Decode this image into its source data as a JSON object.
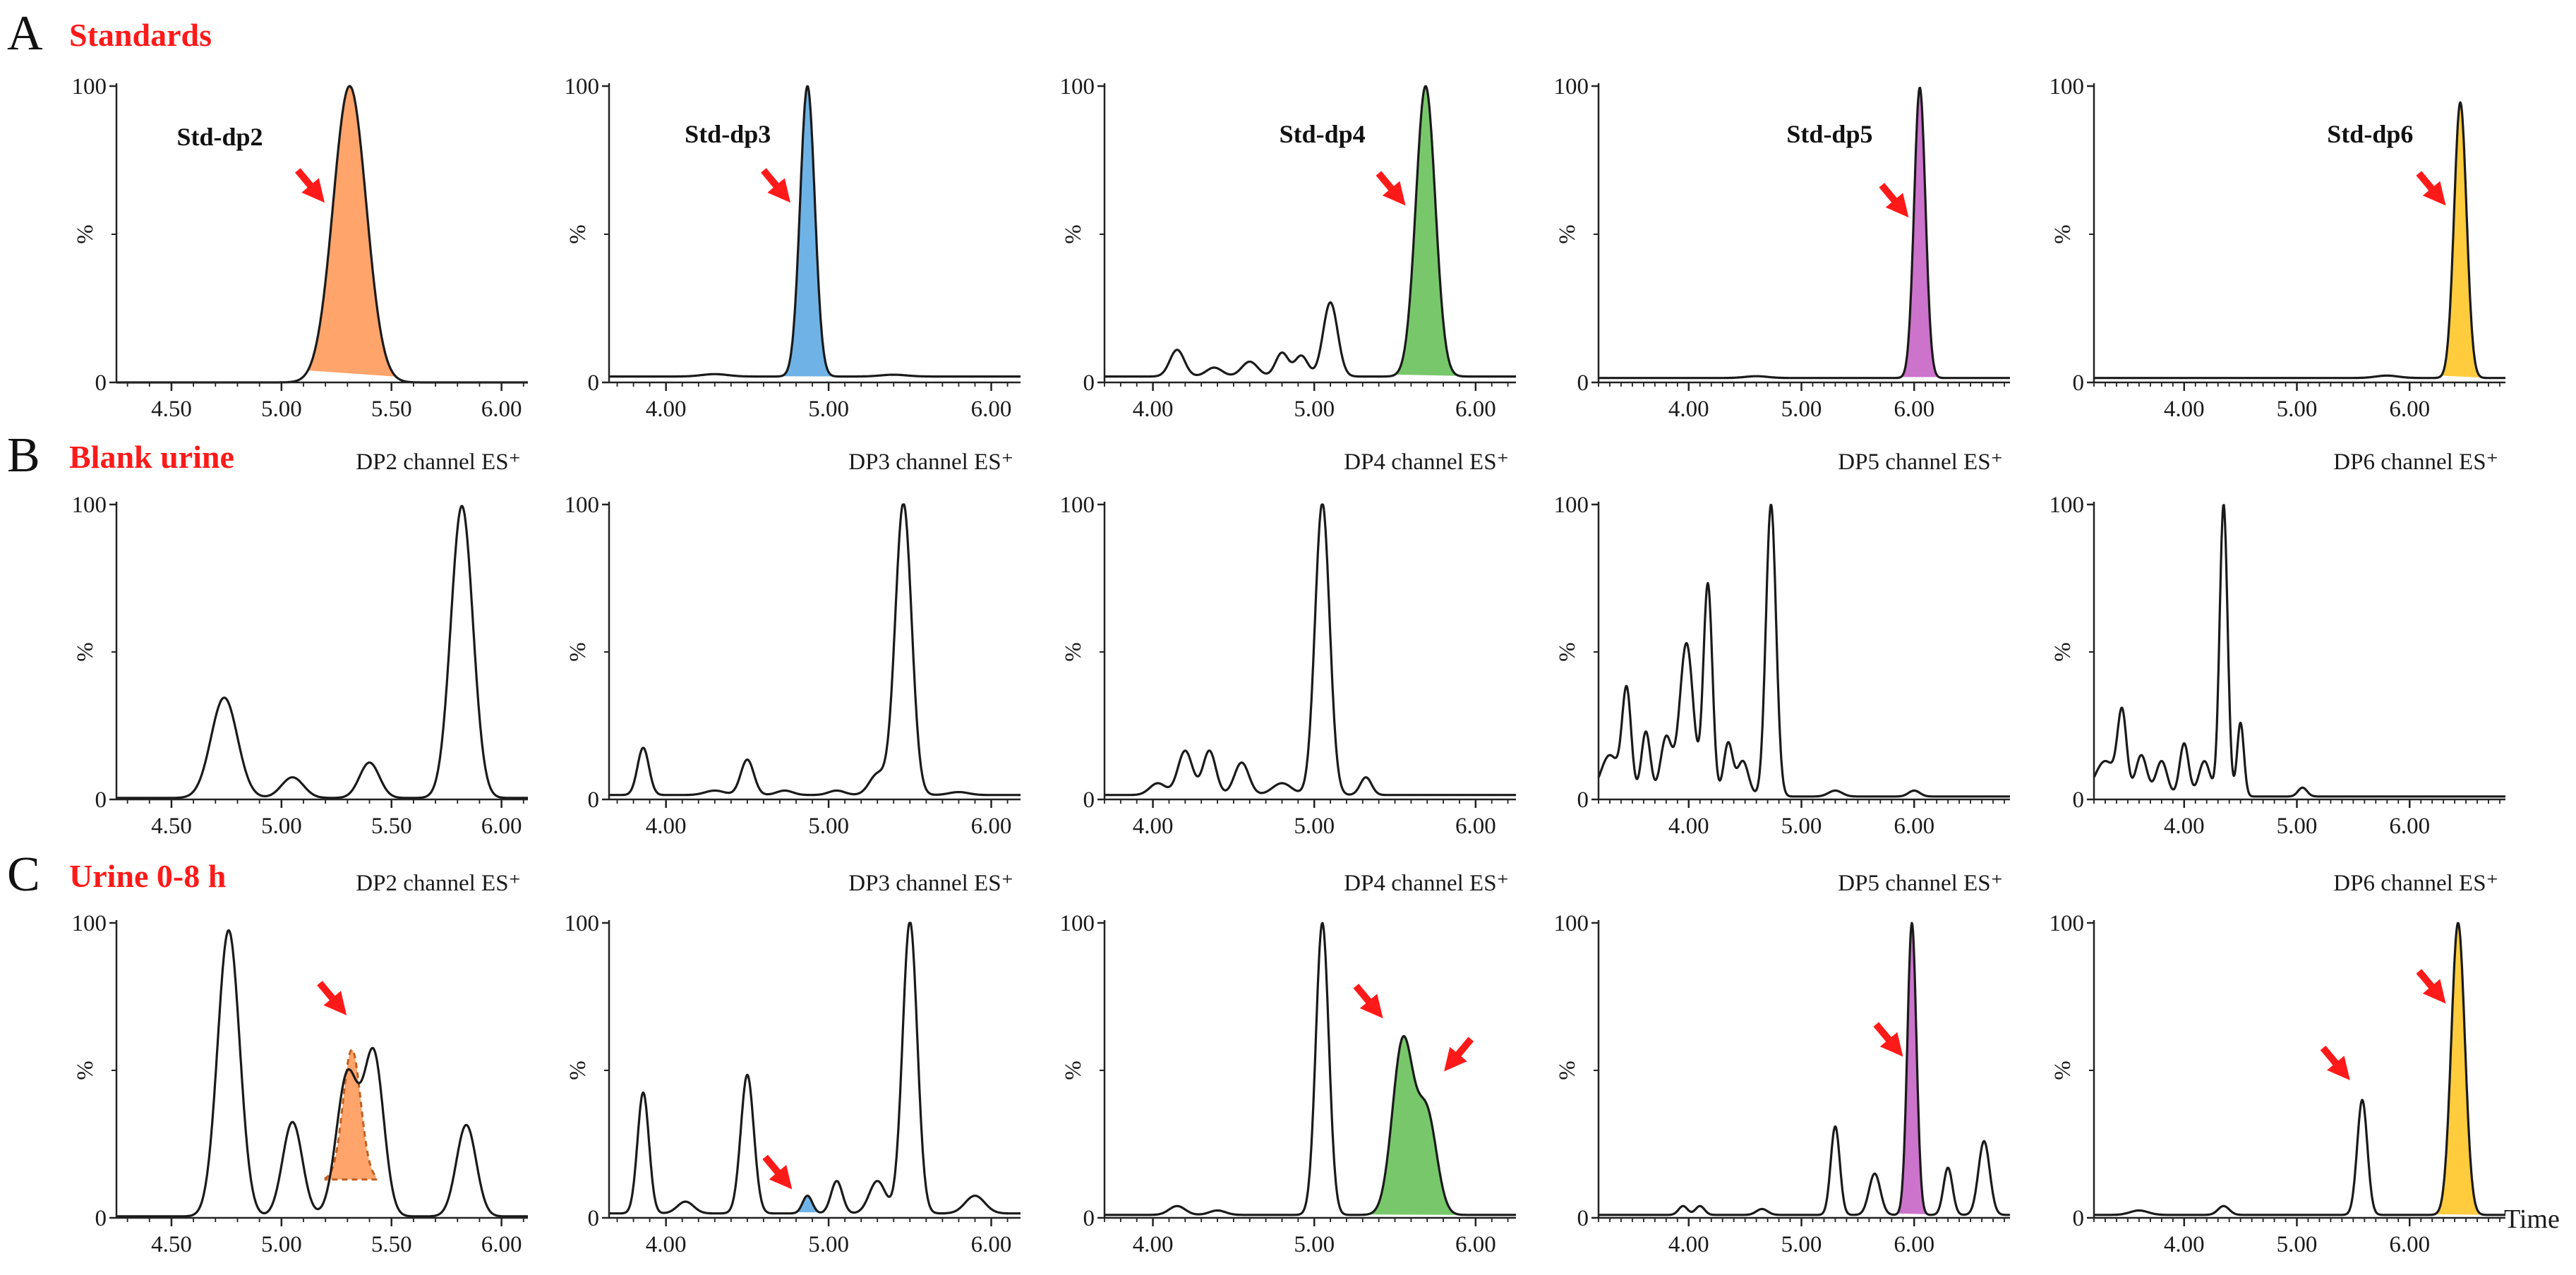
{
  "colors": {
    "arrow": "#ff1a1a",
    "row_title": "#ff1a1a",
    "dp2": "#ffa46b",
    "dp3": "#6fb3e6",
    "dp4": "#78c86b",
    "dp5": "#cc73cc",
    "dp6": "#ffcc3d",
    "trace": "#1a1a1a"
  },
  "figure": {
    "x_axis_label": "Time",
    "y_axis_unit": "%",
    "y_ticks": [
      "0",
      "100"
    ],
    "y_mid_label": "%"
  },
  "rows": [
    {
      "letter": "A",
      "title": "Standards"
    },
    {
      "letter": "B",
      "title": "Blank urine"
    },
    {
      "letter": "C",
      "title": "Urine 0-8 h"
    }
  ],
  "chart_data": [
    {
      "row": "A",
      "col": 1,
      "type": "line",
      "channel_label": "",
      "xlim": [
        4.25,
        6.12
      ],
      "ylim": [
        0,
        100
      ],
      "xticks": [
        4.5,
        5.0,
        5.5,
        6.0
      ],
      "xtick_labels": [
        "4.50",
        "5.00",
        "5.50",
        "6.00"
      ],
      "baseline": 0,
      "peaks": [
        {
          "rt": 5.31,
          "height": 100,
          "width": 0.075
        }
      ],
      "fills": [
        {
          "from": 5.12,
          "to": 5.52,
          "color": "dp2"
        }
      ],
      "arrows": [
        {
          "x": 5.17,
          "y": 63
        }
      ],
      "labels": [
        {
          "text": "Std-dp2",
          "x": 4.72,
          "y": 80
        }
      ]
    },
    {
      "row": "A",
      "col": 2,
      "type": "line",
      "channel_label": "",
      "xlim": [
        3.65,
        6.18
      ],
      "ylim": [
        0,
        100
      ],
      "xticks": [
        4.0,
        5.0,
        6.0
      ],
      "xtick_labels": [
        "4.00",
        "5.00",
        "6.00"
      ],
      "baseline": 2,
      "peaks": [
        {
          "rt": 4.87,
          "height": 98,
          "width": 0.045
        },
        {
          "rt": 4.3,
          "height": 0.8,
          "width": 0.08
        },
        {
          "rt": 5.4,
          "height": 0.6,
          "width": 0.08
        }
      ],
      "fills": [
        {
          "from": 4.7,
          "to": 5.05,
          "color": "dp3"
        }
      ],
      "arrows": [
        {
          "x": 4.73,
          "y": 63
        }
      ],
      "labels": [
        {
          "text": "Std-dp3",
          "x": 4.38,
          "y": 81
        }
      ]
    },
    {
      "row": "A",
      "col": 3,
      "type": "line",
      "channel_label": "",
      "xlim": [
        3.7,
        6.25
      ],
      "ylim": [
        0,
        100
      ],
      "xticks": [
        4.0,
        5.0,
        6.0
      ],
      "xtick_labels": [
        "4.00",
        "5.00",
        "6.00"
      ],
      "baseline": 2,
      "peaks": [
        {
          "rt": 5.69,
          "height": 98,
          "width": 0.06
        },
        {
          "rt": 5.1,
          "height": 25,
          "width": 0.045
        },
        {
          "rt": 4.15,
          "height": 9,
          "width": 0.045
        },
        {
          "rt": 4.6,
          "height": 5,
          "width": 0.05
        },
        {
          "rt": 4.8,
          "height": 8,
          "width": 0.04
        },
        {
          "rt": 4.92,
          "height": 7,
          "width": 0.04
        },
        {
          "rt": 4.38,
          "height": 3,
          "width": 0.05
        }
      ],
      "fills": [
        {
          "from": 5.5,
          "to": 5.9,
          "color": "dp4"
        }
      ],
      "arrows": [
        {
          "x": 5.53,
          "y": 62
        }
      ],
      "labels": [
        {
          "text": "Std-dp4",
          "x": 5.05,
          "y": 81
        }
      ]
    },
    {
      "row": "A",
      "col": 4,
      "type": "line",
      "channel_label": "",
      "xlim": [
        3.2,
        6.85
      ],
      "ylim": [
        0,
        100
      ],
      "xticks": [
        4.0,
        5.0,
        6.0
      ],
      "xtick_labels": [
        "4.00",
        "5.00",
        "6.00"
      ],
      "baseline": 1.5,
      "peaks": [
        {
          "rt": 6.05,
          "height": 98,
          "width": 0.05
        },
        {
          "rt": 4.6,
          "height": 0.6,
          "width": 0.1
        }
      ],
      "fills": [
        {
          "from": 5.88,
          "to": 6.22,
          "color": "dp5"
        }
      ],
      "arrows": [
        {
          "x": 5.9,
          "y": 58
        }
      ],
      "labels": [
        {
          "text": "Std-dp5",
          "x": 5.25,
          "y": 81
        }
      ]
    },
    {
      "row": "A",
      "col": 5,
      "type": "line",
      "channel_label": "",
      "xlim": [
        3.2,
        6.85
      ],
      "ylim": [
        0,
        100
      ],
      "xticks": [
        4.0,
        5.0,
        6.0
      ],
      "xtick_labels": [
        "4.00",
        "5.00",
        "6.00"
      ],
      "baseline": 1.5,
      "peaks": [
        {
          "rt": 6.45,
          "height": 93,
          "width": 0.055
        },
        {
          "rt": 5.8,
          "height": 0.8,
          "width": 0.1
        }
      ],
      "fills": [
        {
          "from": 6.28,
          "to": 6.65,
          "color": "dp6"
        }
      ],
      "arrows": [
        {
          "x": 6.27,
          "y": 62
        }
      ],
      "labels": [
        {
          "text": "Std-dp6",
          "x": 5.65,
          "y": 81
        }
      ]
    },
    {
      "row": "B",
      "col": 1,
      "type": "line",
      "channel_label": "DP2 channel ES⁺",
      "xlim": [
        4.25,
        6.12
      ],
      "ylim": [
        0,
        100
      ],
      "xticks": [
        4.5,
        5.0,
        5.5,
        6.0
      ],
      "xtick_labels": [
        "4.50",
        "5.00",
        "5.50",
        "6.00"
      ],
      "baseline": 0.5,
      "peaks": [
        {
          "rt": 4.74,
          "height": 34,
          "width": 0.06
        },
        {
          "rt": 5.05,
          "height": 7,
          "width": 0.05
        },
        {
          "rt": 5.4,
          "height": 12,
          "width": 0.045
        },
        {
          "rt": 5.82,
          "height": 99,
          "width": 0.05
        }
      ],
      "fills": [],
      "arrows": [],
      "labels": []
    },
    {
      "row": "B",
      "col": 2,
      "type": "line",
      "channel_label": "DP3 channel ES⁺",
      "xlim": [
        3.65,
        6.18
      ],
      "ylim": [
        0,
        100
      ],
      "xticks": [
        4.0,
        5.0,
        6.0
      ],
      "xtick_labels": [
        "4.00",
        "5.00",
        "6.00"
      ],
      "baseline": 1.5,
      "peaks": [
        {
          "rt": 3.86,
          "height": 16,
          "width": 0.035
        },
        {
          "rt": 4.5,
          "height": 12,
          "width": 0.04
        },
        {
          "rt": 5.46,
          "height": 99,
          "width": 0.05
        },
        {
          "rt": 5.3,
          "height": 7,
          "width": 0.05
        },
        {
          "rt": 4.3,
          "height": 1.5,
          "width": 0.06
        },
        {
          "rt": 4.73,
          "height": 1.5,
          "width": 0.05
        },
        {
          "rt": 5.05,
          "height": 1.5,
          "width": 0.05
        },
        {
          "rt": 5.8,
          "height": 1,
          "width": 0.06
        }
      ],
      "fills": [],
      "arrows": [],
      "labels": []
    },
    {
      "row": "B",
      "col": 3,
      "type": "line",
      "channel_label": "DP4 channel ES⁺",
      "xlim": [
        3.7,
        6.25
      ],
      "ylim": [
        0,
        100
      ],
      "xticks": [
        4.0,
        5.0,
        6.0
      ],
      "xtick_labels": [
        "4.00",
        "5.00",
        "6.00"
      ],
      "baseline": 1.5,
      "peaks": [
        {
          "rt": 5.05,
          "height": 99,
          "width": 0.045
        },
        {
          "rt": 4.2,
          "height": 15,
          "width": 0.045
        },
        {
          "rt": 4.35,
          "height": 15,
          "width": 0.04
        },
        {
          "rt": 4.55,
          "height": 11,
          "width": 0.045
        },
        {
          "rt": 4.03,
          "height": 4,
          "width": 0.05
        },
        {
          "rt": 4.8,
          "height": 4,
          "width": 0.06
        },
        {
          "rt": 5.32,
          "height": 6,
          "width": 0.035
        }
      ],
      "fills": [],
      "arrows": [],
      "labels": []
    },
    {
      "row": "B",
      "col": 4,
      "type": "line",
      "channel_label": "DP5 channel ES⁺",
      "xlim": [
        3.2,
        6.85
      ],
      "ylim": [
        0,
        100
      ],
      "xticks": [
        4.0,
        5.0,
        6.0
      ],
      "xtick_labels": [
        "4.00",
        "5.00",
        "6.00"
      ],
      "baseline": 1,
      "peaks": [
        {
          "rt": 3.3,
          "height": 14,
          "width": 0.08
        },
        {
          "rt": 3.45,
          "height": 35,
          "width": 0.04
        },
        {
          "rt": 3.62,
          "height": 22,
          "width": 0.04
        },
        {
          "rt": 3.8,
          "height": 20,
          "width": 0.05
        },
        {
          "rt": 3.98,
          "height": 52,
          "width": 0.06
        },
        {
          "rt": 4.17,
          "height": 72,
          "width": 0.04
        },
        {
          "rt": 4.35,
          "height": 18,
          "width": 0.04
        },
        {
          "rt": 4.48,
          "height": 12,
          "width": 0.05
        },
        {
          "rt": 4.73,
          "height": 99,
          "width": 0.045
        },
        {
          "rt": 5.3,
          "height": 2,
          "width": 0.06
        },
        {
          "rt": 6.0,
          "height": 2,
          "width": 0.05
        }
      ],
      "fills": [],
      "arrows": [],
      "labels": []
    },
    {
      "row": "B",
      "col": 5,
      "type": "line",
      "channel_label": "DP6 channel ES⁺",
      "xlim": [
        3.2,
        6.85
      ],
      "ylim": [
        0,
        100
      ],
      "xticks": [
        4.0,
        5.0,
        6.0
      ],
      "xtick_labels": [
        "4.00",
        "5.00",
        "6.00"
      ],
      "baseline": 1,
      "peaks": [
        {
          "rt": 3.3,
          "height": 12,
          "width": 0.09
        },
        {
          "rt": 3.45,
          "height": 27,
          "width": 0.04
        },
        {
          "rt": 3.62,
          "height": 14,
          "width": 0.05
        },
        {
          "rt": 3.8,
          "height": 12,
          "width": 0.05
        },
        {
          "rt": 4.0,
          "height": 18,
          "width": 0.04
        },
        {
          "rt": 4.18,
          "height": 12,
          "width": 0.05
        },
        {
          "rt": 4.35,
          "height": 99,
          "width": 0.035
        },
        {
          "rt": 4.5,
          "height": 25,
          "width": 0.03
        },
        {
          "rt": 5.05,
          "height": 3,
          "width": 0.04
        }
      ],
      "fills": [],
      "arrows": [],
      "labels": []
    },
    {
      "row": "C",
      "col": 1,
      "type": "line",
      "channel_label": "DP2 channel ES⁺",
      "xlim": [
        4.25,
        6.12
      ],
      "ylim": [
        0,
        100
      ],
      "xticks": [
        4.5,
        5.0,
        5.5,
        6.0
      ],
      "xtick_labels": [
        "4.50",
        "5.00",
        "5.50",
        "6.00"
      ],
      "baseline": 0.5,
      "peaks": [
        {
          "rt": 4.76,
          "height": 97,
          "width": 0.05
        },
        {
          "rt": 5.05,
          "height": 32,
          "width": 0.045
        },
        {
          "rt": 5.3,
          "height": 48,
          "width": 0.05
        },
        {
          "rt": 5.42,
          "height": 54,
          "width": 0.045
        },
        {
          "rt": 5.84,
          "height": 31,
          "width": 0.045
        }
      ],
      "fills": [
        {
          "from": 5.2,
          "to": 5.43,
          "color": "dp2",
          "dashed": true,
          "peak_rt": 5.32,
          "peak_height": 57,
          "width": 0.04,
          "base": 13
        }
      ],
      "arrows": [
        {
          "x": 5.27,
          "y": 71
        }
      ],
      "labels": []
    },
    {
      "row": "C",
      "col": 2,
      "type": "line",
      "channel_label": "DP3 channel ES⁺",
      "xlim": [
        3.65,
        6.18
      ],
      "ylim": [
        0,
        100
      ],
      "xticks": [
        4.0,
        5.0,
        6.0
      ],
      "xtick_labels": [
        "4.00",
        "5.00",
        "6.00"
      ],
      "baseline": 1.5,
      "peaks": [
        {
          "rt": 3.86,
          "height": 41,
          "width": 0.035
        },
        {
          "rt": 4.5,
          "height": 47,
          "width": 0.04
        },
        {
          "rt": 5.5,
          "height": 99,
          "width": 0.045
        },
        {
          "rt": 4.12,
          "height": 4,
          "width": 0.05
        },
        {
          "rt": 4.87,
          "height": 6,
          "width": 0.03
        },
        {
          "rt": 5.05,
          "height": 11,
          "width": 0.035
        },
        {
          "rt": 5.3,
          "height": 11,
          "width": 0.05
        },
        {
          "rt": 5.9,
          "height": 6,
          "width": 0.06
        }
      ],
      "fills": [
        {
          "from": 4.8,
          "to": 4.95,
          "color": "dp3"
        }
      ],
      "arrows": [
        {
          "x": 4.74,
          "y": 12
        }
      ],
      "labels": []
    },
    {
      "row": "C",
      "col": 3,
      "type": "line",
      "channel_label": "DP4 channel ES⁺",
      "xlim": [
        3.7,
        6.25
      ],
      "ylim": [
        0,
        100
      ],
      "xticks": [
        4.0,
        5.0,
        6.0
      ],
      "xtick_labels": [
        "4.00",
        "5.00",
        "6.00"
      ],
      "baseline": 1,
      "peaks": [
        {
          "rt": 5.05,
          "height": 99,
          "width": 0.04
        },
        {
          "rt": 5.55,
          "height": 59,
          "width": 0.065
        },
        {
          "rt": 5.7,
          "height": 33,
          "width": 0.06
        },
        {
          "rt": 4.15,
          "height": 3,
          "width": 0.05
        },
        {
          "rt": 4.4,
          "height": 1.5,
          "width": 0.05
        }
      ],
      "fills": [
        {
          "from": 5.32,
          "to": 5.98,
          "color": "dp4"
        }
      ],
      "arrows": [
        {
          "x": 5.39,
          "y": 70
        },
        {
          "x": 5.84,
          "y": 52
        }
      ],
      "labels": []
    },
    {
      "row": "C",
      "col": 4,
      "type": "line",
      "channel_label": "DP5 channel ES⁺",
      "xlim": [
        3.2,
        6.85
      ],
      "ylim": [
        0,
        100
      ],
      "xticks": [
        4.0,
        5.0,
        6.0
      ],
      "xtick_labels": [
        "4.00",
        "5.00",
        "6.00"
      ],
      "baseline": 1,
      "peaks": [
        {
          "rt": 5.3,
          "height": 30,
          "width": 0.04
        },
        {
          "rt": 5.65,
          "height": 14,
          "width": 0.05
        },
        {
          "rt": 5.98,
          "height": 99,
          "width": 0.04
        },
        {
          "rt": 6.3,
          "height": 16,
          "width": 0.04
        },
        {
          "rt": 6.62,
          "height": 25,
          "width": 0.05
        },
        {
          "rt": 3.95,
          "height": 3,
          "width": 0.04
        },
        {
          "rt": 4.1,
          "height": 3,
          "width": 0.04
        },
        {
          "rt": 4.65,
          "height": 2,
          "width": 0.05
        }
      ],
      "fills": [
        {
          "from": 5.85,
          "to": 6.12,
          "color": "dp5"
        }
      ],
      "arrows": [
        {
          "x": 5.85,
          "y": 57
        }
      ],
      "labels": []
    },
    {
      "row": "C",
      "col": 5,
      "type": "line",
      "channel_label": "DP6 channel ES⁺",
      "xlim": [
        3.2,
        6.85
      ],
      "ylim": [
        0,
        100
      ],
      "xticks": [
        4.0,
        5.0,
        6.0
      ],
      "xtick_labels": [
        "4.00",
        "5.00",
        "6.00"
      ],
      "baseline": 1,
      "peaks": [
        {
          "rt": 5.58,
          "height": 39,
          "width": 0.045
        },
        {
          "rt": 6.43,
          "height": 99,
          "width": 0.06
        },
        {
          "rt": 4.35,
          "height": 3,
          "width": 0.05
        },
        {
          "rt": 3.6,
          "height": 1.5,
          "width": 0.08
        }
      ],
      "fills": [
        {
          "from": 6.22,
          "to": 6.78,
          "color": "dp6"
        }
      ],
      "arrows": [
        {
          "x": 5.42,
          "y": 49
        },
        {
          "x": 6.27,
          "y": 75
        }
      ],
      "labels": []
    }
  ]
}
